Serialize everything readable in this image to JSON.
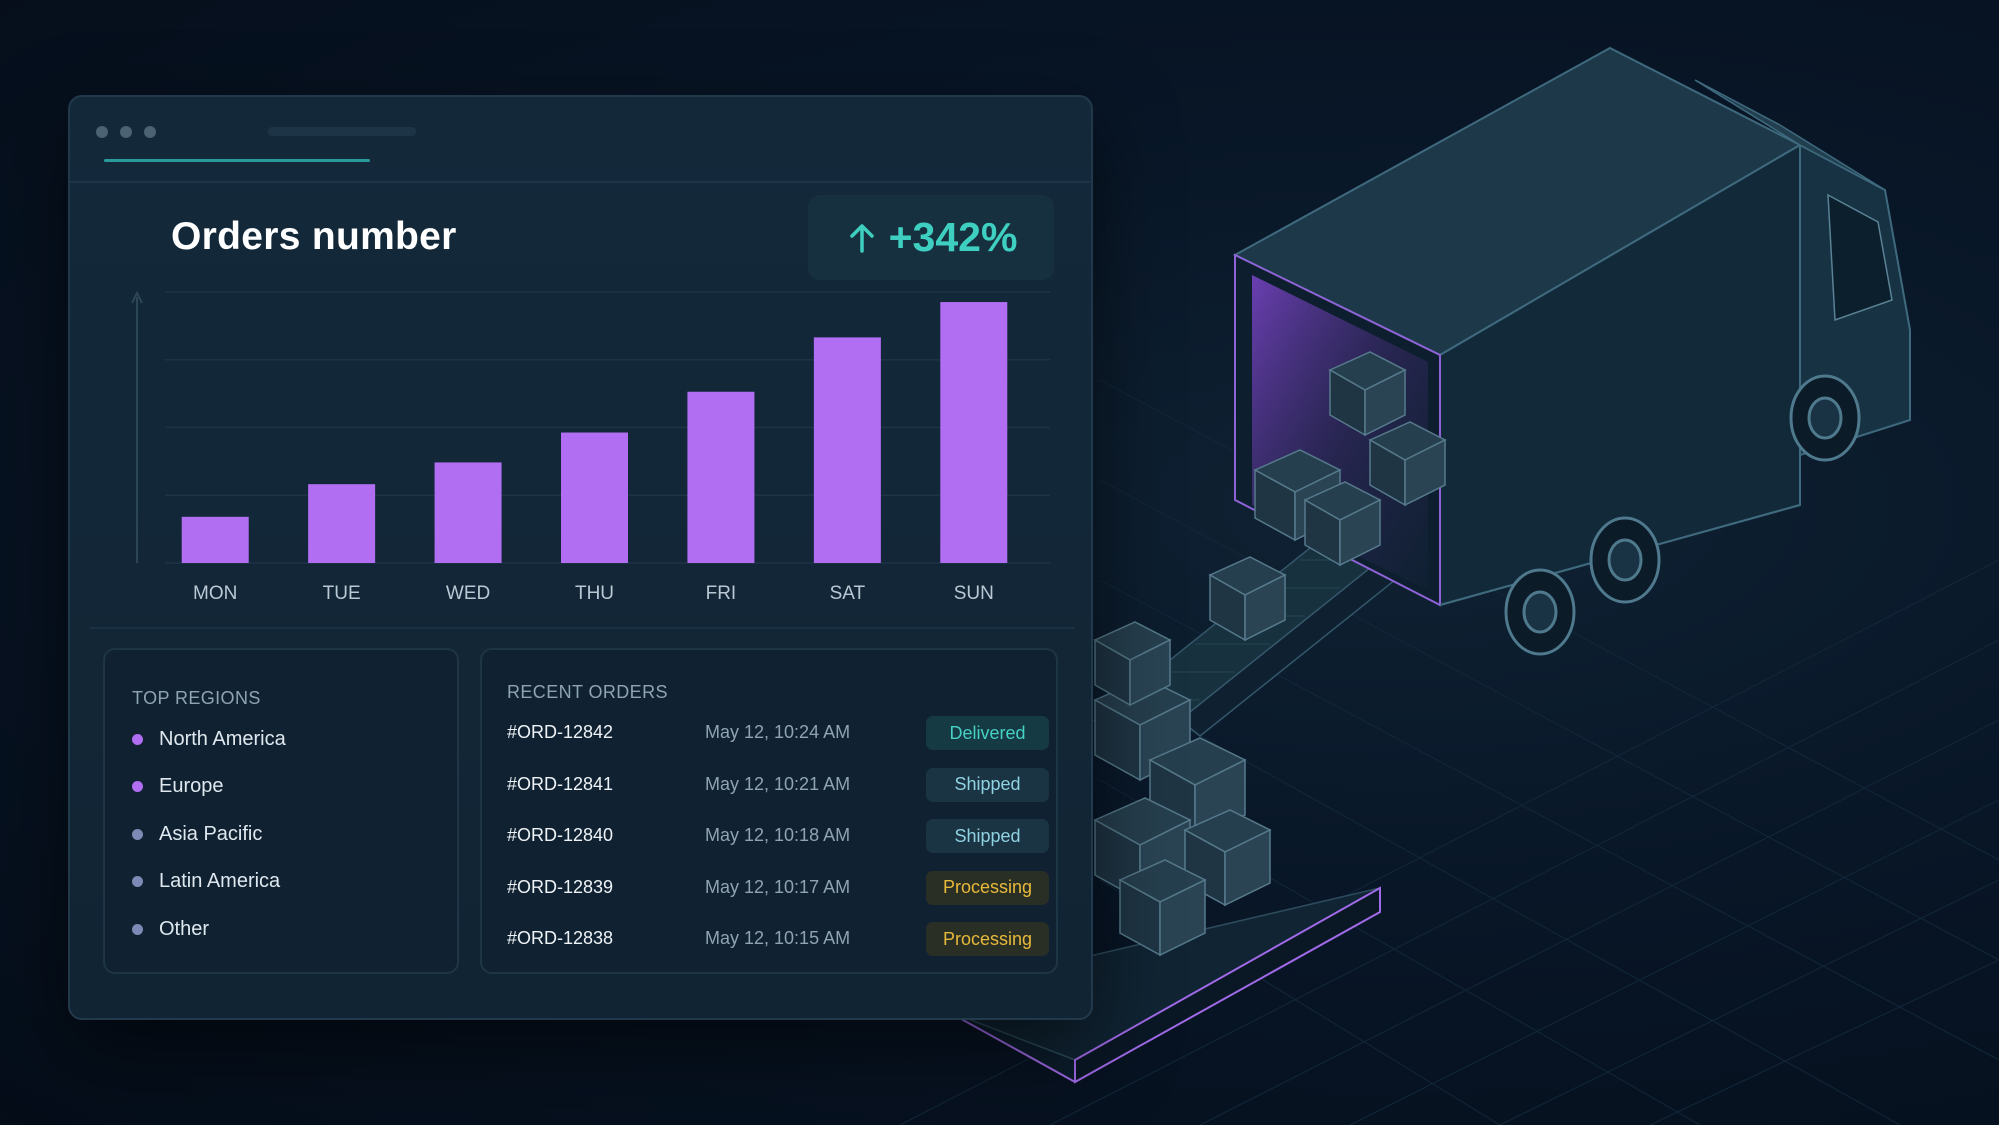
{
  "window": {
    "title_dots": 3
  },
  "chart": {
    "title": "Orders number",
    "growth": {
      "value": "+342%",
      "icon": "arrow-up-icon",
      "color": "#3ecfc0"
    }
  },
  "chart_data": {
    "type": "bar",
    "title": "Orders number",
    "categories": [
      "MON",
      "TUE",
      "WED",
      "THU",
      "FRI",
      "SAT",
      "SUN"
    ],
    "values": [
      17,
      29,
      37,
      48,
      63,
      83,
      96
    ],
    "ylim": [
      0,
      110
    ],
    "grid": true,
    "bar_color": "#b26ef3"
  },
  "regions": {
    "heading": "TOP REGIONS",
    "items": [
      {
        "name": "North America",
        "color": "#b26ef3"
      },
      {
        "name": "Europe",
        "color": "#b26ef3"
      },
      {
        "name": "Asia Pacific",
        "color": "#7d8ab5"
      },
      {
        "name": "Latin America",
        "color": "#7d8ab5"
      },
      {
        "name": "Other",
        "color": "#7d8ab5"
      }
    ]
  },
  "orders": {
    "heading": "RECENT ORDERS",
    "rows": [
      {
        "id": "#ORD-12842",
        "time": "May 12, 10:24 AM",
        "status": "Delivered",
        "kind": "delivered"
      },
      {
        "id": "#ORD-12841",
        "time": "May 12, 10:21 AM",
        "status": "Shipped",
        "kind": "shipped"
      },
      {
        "id": "#ORD-12840",
        "time": "May 12, 10:18 AM",
        "status": "Shipped",
        "kind": "shipped"
      },
      {
        "id": "#ORD-12839",
        "time": "May 12, 10:17 AM",
        "status": "Processing",
        "kind": "processing"
      },
      {
        "id": "#ORD-12838",
        "time": "May 12, 10:15 AM",
        "status": "Processing",
        "kind": "processing"
      }
    ]
  },
  "colors": {
    "accent": "#b26ef3",
    "teal": "#3ecfc0",
    "warning": "#e7b93a",
    "background": "#06111f"
  }
}
